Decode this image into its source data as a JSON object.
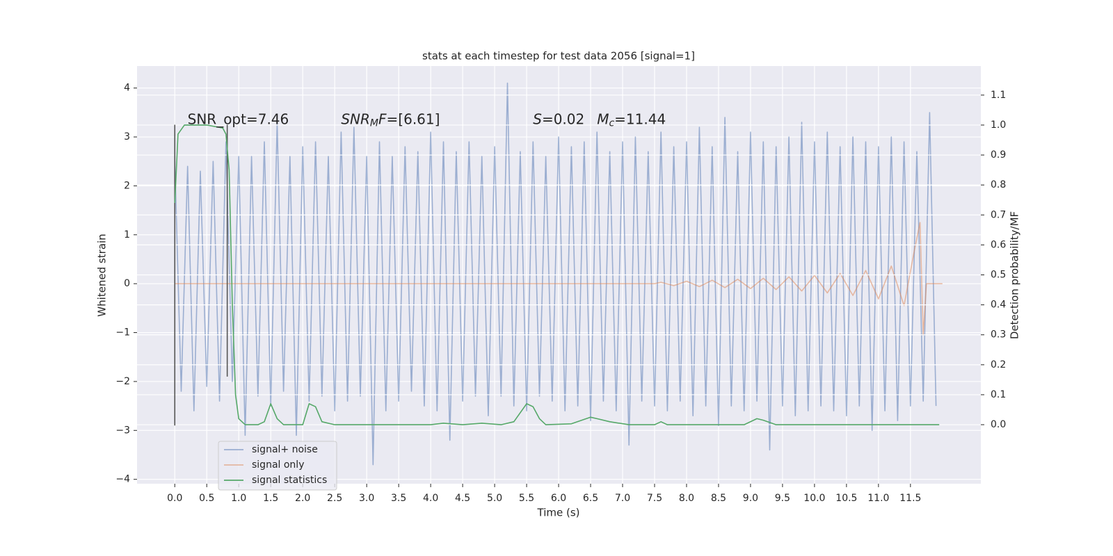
{
  "chart_data": {
    "type": "line",
    "title": "stats at each timestep for test data 2056 [signal=1]",
    "xlabel": "Time (s)",
    "ylabel": "Whitened strain",
    "y2label": "Detection probability/MF",
    "xlim": [
      -0.59,
      12.6
    ],
    "ylim": [
      -4.09,
      4.45
    ],
    "y2lim": [
      -0.197,
      1.197
    ],
    "xticks": [
      {
        "value": 0,
        "label": "0.0"
      },
      {
        "value": 0.5,
        "label": "0.5"
      },
      {
        "value": 1,
        "label": "1.0"
      },
      {
        "value": 1.5,
        "label": "1.5"
      },
      {
        "value": 2,
        "label": "2.0"
      },
      {
        "value": 2.5,
        "label": "2.5"
      },
      {
        "value": 3,
        "label": "3.0"
      },
      {
        "value": 3.5,
        "label": "3.5"
      },
      {
        "value": 4,
        "label": "4.0"
      },
      {
        "value": 4.5,
        "label": "4.5"
      },
      {
        "value": 5,
        "label": "5.0"
      },
      {
        "value": 5.5,
        "label": "5.5"
      },
      {
        "value": 6,
        "label": "6.0"
      },
      {
        "value": 6.5,
        "label": "6.5"
      },
      {
        "value": 7,
        "label": "7.0"
      },
      {
        "value": 7.5,
        "label": "7.5"
      },
      {
        "value": 8,
        "label": "8.0"
      },
      {
        "value": 8.5,
        "label": "8.5"
      },
      {
        "value": 9,
        "label": "9.0"
      },
      {
        "value": 9.5,
        "label": "9.5"
      },
      {
        "value": 10,
        "label": "10.0"
      },
      {
        "value": 10.5,
        "label": "10.5"
      },
      {
        "value": 11,
        "label": "11.0"
      },
      {
        "value": 11.5,
        "label": "11.5"
      }
    ],
    "yticks": [
      {
        "value": -4,
        "label": "−4"
      },
      {
        "value": -3,
        "label": "−3"
      },
      {
        "value": -2,
        "label": "−2"
      },
      {
        "value": -1,
        "label": "−1"
      },
      0,
      1,
      2,
      3,
      4
    ],
    "y2ticks": [
      {
        "value": 0,
        "label": "0.0"
      },
      {
        "value": 0.1,
        "label": "0.1"
      },
      {
        "value": 0.2,
        "label": "0.2"
      },
      {
        "value": 0.3,
        "label": "0.3"
      },
      {
        "value": 0.4,
        "label": "0.4"
      },
      {
        "value": 0.5,
        "label": "0.5"
      },
      {
        "value": 0.6,
        "label": "0.6"
      },
      {
        "value": 0.7,
        "label": "0.7"
      },
      {
        "value": 0.8,
        "label": "0.8"
      },
      {
        "value": 0.9,
        "label": "0.9"
      },
      {
        "value": 1,
        "label": "1.0"
      },
      {
        "value": 1.1,
        "label": "1.1"
      }
    ],
    "grid": true,
    "legend": "lower left",
    "series": [
      {
        "name": "signal+ noise",
        "color": "#4c72b0",
        "alpha": 0.5,
        "x": [
          0,
          0.1,
          0.2,
          0.3,
          0.4,
          0.5,
          0.6,
          0.7,
          0.8,
          0.9,
          1,
          1.1,
          1.2,
          1.3,
          1.4,
          1.5,
          1.6,
          1.7,
          1.8,
          1.9,
          2,
          2.1,
          2.2,
          2.3,
          2.4,
          2.5,
          2.6,
          2.7,
          2.8,
          2.9,
          3,
          3.1,
          3.2,
          3.3,
          3.4,
          3.5,
          3.6,
          3.7,
          3.8,
          3.9,
          4,
          4.1,
          4.2,
          4.3,
          4.4,
          4.5,
          4.6,
          4.7,
          4.8,
          4.9,
          5,
          5.1,
          5.2,
          5.3,
          5.4,
          5.5,
          5.6,
          5.7,
          5.8,
          5.9,
          6,
          6.1,
          6.2,
          6.3,
          6.4,
          6.5,
          6.6,
          6.7,
          6.8,
          6.9,
          7,
          7.1,
          7.2,
          7.3,
          7.4,
          7.5,
          7.6,
          7.7,
          7.8,
          7.9,
          8,
          8.1,
          8.2,
          8.3,
          8.4,
          8.5,
          8.6,
          8.7,
          8.8,
          8.9,
          9,
          9.1,
          9.2,
          9.3,
          9.4,
          9.5,
          9.6,
          9.7,
          9.8,
          9.9,
          10,
          10.1,
          10.2,
          10.3,
          10.4,
          10.5,
          10.6,
          10.7,
          10.8,
          10.9,
          11,
          11.1,
          11.2,
          11.3,
          11.4,
          11.5,
          11.6,
          11.7,
          11.8,
          11.9
        ],
        "values": [
          2.5,
          -2.2,
          2.4,
          -2.6,
          2.3,
          -2.1,
          2.5,
          -2.4,
          2.9,
          -2.0,
          2.6,
          -3.1,
          2.6,
          -2.3,
          2.9,
          -2.5,
          3.3,
          -2.2,
          2.6,
          -3.1,
          2.8,
          -2.4,
          2.9,
          -2.3,
          2.6,
          -2.6,
          3.1,
          -2.4,
          3.2,
          -2.3,
          2.6,
          -3.7,
          2.9,
          -2.6,
          2.6,
          -2.4,
          2.8,
          -2.2,
          2.7,
          -2.5,
          3.1,
          -2.6,
          2.9,
          -3.2,
          2.7,
          -2.4,
          2.9,
          -2.3,
          2.6,
          -2.7,
          2.8,
          -2.3,
          4.1,
          -2.5,
          2.7,
          -2.6,
          2.9,
          -2.3,
          2.6,
          -2.4,
          3.0,
          -2.6,
          2.8,
          -2.5,
          2.9,
          -2.8,
          3.1,
          -2.4,
          2.7,
          -2.6,
          2.9,
          -3.3,
          3.0,
          -2.4,
          2.7,
          -2.5,
          3.1,
          -2.6,
          2.8,
          -2.4,
          2.9,
          -2.7,
          3.2,
          -2.5,
          2.8,
          -2.9,
          3.4,
          -2.5,
          2.7,
          -2.6,
          3.1,
          -2.4,
          2.9,
          -3.4,
          2.8,
          -2.5,
          3.0,
          -2.7,
          3.3,
          -2.6,
          2.9,
          -2.5,
          3.1,
          -2.6,
          2.8,
          -2.7,
          3.0,
          -2.5,
          2.9,
          -3.0,
          2.8,
          -2.6,
          3.0,
          -2.8,
          2.9,
          -2.5,
          2.7,
          -2.4,
          3.5,
          -2.5
        ]
      },
      {
        "name": "signal only",
        "color": "#dd8452",
        "alpha": 0.5,
        "x": [
          0,
          7.5,
          7.6,
          7.8,
          8,
          8.2,
          8.4,
          8.6,
          8.8,
          9,
          9.2,
          9.4,
          9.6,
          9.8,
          10,
          10.2,
          10.4,
          10.6,
          10.8,
          11,
          11.2,
          11.4,
          11.55,
          11.65,
          11.7,
          11.75,
          12
        ],
        "values": [
          0,
          0,
          0.03,
          -0.04,
          0.05,
          -0.06,
          0.07,
          -0.08,
          0.09,
          -0.1,
          0.11,
          -0.12,
          0.14,
          -0.15,
          0.17,
          -0.19,
          0.21,
          -0.24,
          0.27,
          -0.31,
          0.36,
          -0.45,
          0.6,
          1.25,
          -1.05,
          0,
          0
        ]
      },
      {
        "name": "signal statistics",
        "color": "#55a868",
        "alpha": 1,
        "axis": "y2",
        "x": [
          0,
          0.05,
          0.15,
          0.3,
          0.5,
          0.75,
          0.8,
          0.85,
          0.9,
          0.95,
          1,
          1.1,
          1.3,
          1.4,
          1.5,
          1.6,
          1.7,
          2,
          2.1,
          2.2,
          2.3,
          2.5,
          4,
          4.2,
          4.5,
          4.8,
          5.1,
          5.3,
          5.5,
          5.6,
          5.7,
          5.8,
          6.2,
          6.5,
          6.6,
          6.8,
          7.1,
          7.5,
          7.6,
          7.7,
          8.9,
          9.1,
          9.2,
          9.4,
          11.5,
          11.95
        ],
        "values": [
          0.74,
          0.97,
          1.0,
          1.0,
          1.0,
          0.99,
          0.97,
          0.85,
          0.4,
          0.1,
          0.02,
          0.0,
          0.0,
          0.01,
          0.07,
          0.02,
          0.0,
          0.0,
          0.07,
          0.06,
          0.01,
          0.0,
          0.0,
          0.005,
          0.0,
          0.005,
          0.0,
          0.01,
          0.07,
          0.06,
          0.02,
          0.0,
          0.003,
          0.025,
          0.02,
          0.01,
          0.0,
          0.0,
          0.01,
          0.0,
          0.0,
          0.02,
          0.015,
          0.0,
          0.0,
          0.0
        ]
      }
    ],
    "vlines": [
      {
        "x": 0,
        "ymin": -2.9,
        "ymax": 3.25,
        "color": "#555555"
      },
      {
        "x": 0.82,
        "ymin": -1.9,
        "ymax": 3.25,
        "color": "#555555"
      }
    ],
    "annotations": [
      {
        "x": 0.2,
        "y": 3.35,
        "parts": [
          {
            "text": "SNR_opt=7.46"
          }
        ]
      },
      {
        "x": 2.6,
        "y": 3.35,
        "parts": [
          {
            "text": "SNR",
            "italic": true
          },
          {
            "text": "M",
            "italic": true,
            "sub": true
          },
          {
            "text": "F",
            "italic": true
          },
          {
            "text": "=[6.61]"
          }
        ]
      },
      {
        "x": 5.6,
        "y": 3.35,
        "parts": [
          {
            "text": "S",
            "italic": true
          },
          {
            "text": "=0.02"
          }
        ]
      },
      {
        "x": 6.6,
        "y": 3.35,
        "parts": [
          {
            "text": "M",
            "italic": true
          },
          {
            "text": "c",
            "italic": true,
            "sub": true
          },
          {
            "text": "=11.44"
          }
        ]
      }
    ]
  }
}
